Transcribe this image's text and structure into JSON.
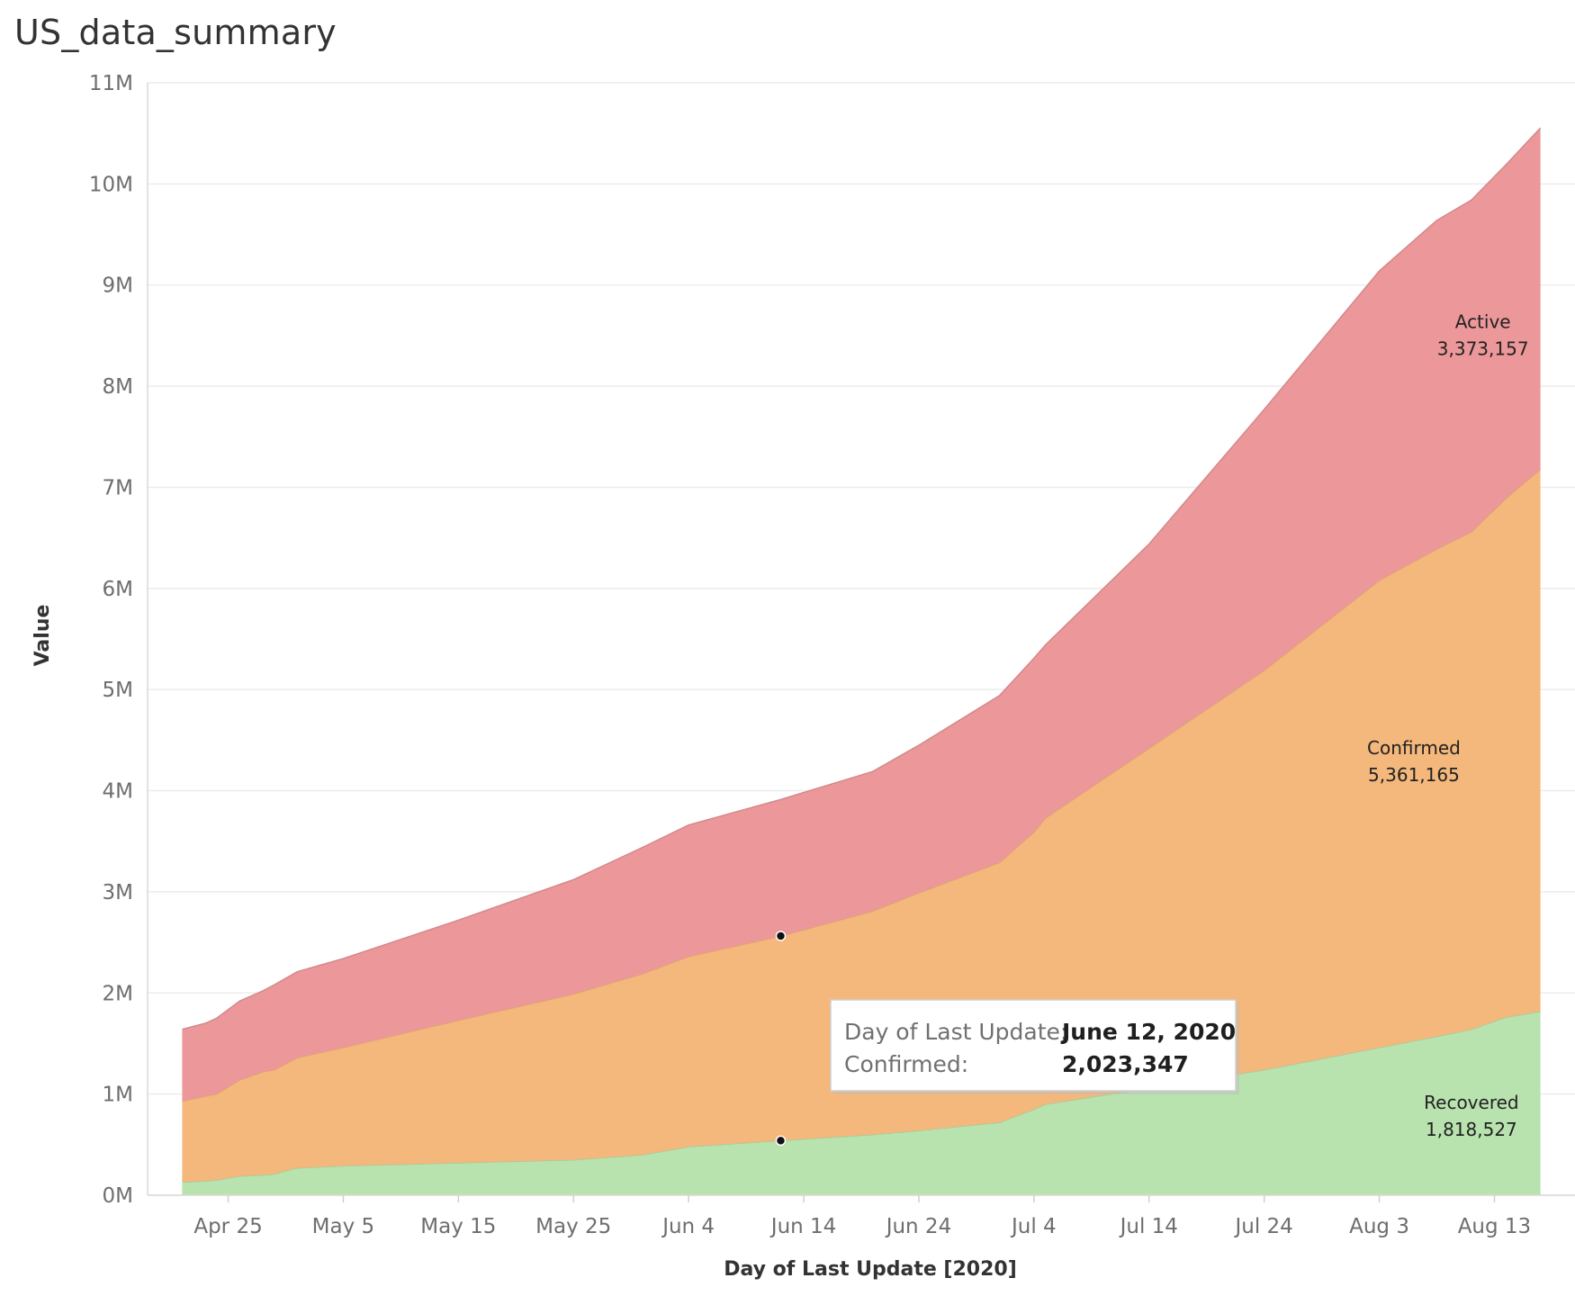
{
  "title": "US_data_summary",
  "chart_data": {
    "type": "area",
    "stacked": true,
    "title": "US_data_summary",
    "xlabel": "Day of Last Update [2020]",
    "ylabel": "Value",
    "y_ticks": [
      "0M",
      "1M",
      "2M",
      "3M",
      "4M",
      "5M",
      "6M",
      "7M",
      "8M",
      "9M",
      "10M",
      "11M"
    ],
    "ylim": [
      0,
      11000000
    ],
    "x_ticks": [
      {
        "date": "2020-04-25",
        "label": "Apr 25"
      },
      {
        "date": "2020-05-05",
        "label": "May 5"
      },
      {
        "date": "2020-05-15",
        "label": "May 15"
      },
      {
        "date": "2020-05-25",
        "label": "May 25"
      },
      {
        "date": "2020-06-04",
        "label": "Jun 4"
      },
      {
        "date": "2020-06-14",
        "label": "Jun 14"
      },
      {
        "date": "2020-06-24",
        "label": "Jun 24"
      },
      {
        "date": "2020-07-04",
        "label": "Jul 4"
      },
      {
        "date": "2020-07-14",
        "label": "Jul 14"
      },
      {
        "date": "2020-07-24",
        "label": "Jul 24"
      },
      {
        "date": "2020-08-03",
        "label": "Aug 3"
      },
      {
        "date": "2020-08-13",
        "label": "Aug 13"
      }
    ],
    "xlim": [
      "2020-04-18",
      "2020-08-20"
    ],
    "grid": true,
    "series": [
      {
        "name": "Recovered",
        "color": "#b8e2ae",
        "end_label": "Recovered",
        "end_value_label": "1,818,527",
        "points": [
          [
            "2020-04-21",
            130000
          ],
          [
            "2020-04-23",
            140000
          ],
          [
            "2020-04-24",
            150000
          ],
          [
            "2020-04-26",
            190000
          ],
          [
            "2020-04-28",
            200000
          ],
          [
            "2020-04-29",
            210000
          ],
          [
            "2020-05-01",
            270000
          ],
          [
            "2020-05-05",
            290000
          ],
          [
            "2020-05-15",
            320000
          ],
          [
            "2020-05-25",
            350000
          ],
          [
            "2020-05-31",
            400000
          ],
          [
            "2020-06-04",
            480000
          ],
          [
            "2020-06-12",
            540000
          ],
          [
            "2020-06-20",
            600000
          ],
          [
            "2020-06-24",
            640000
          ],
          [
            "2020-07-01",
            720000
          ],
          [
            "2020-07-04",
            850000
          ],
          [
            "2020-07-05",
            900000
          ],
          [
            "2020-07-14",
            1060000
          ],
          [
            "2020-07-24",
            1240000
          ],
          [
            "2020-08-03",
            1460000
          ],
          [
            "2020-08-08",
            1570000
          ],
          [
            "2020-08-11",
            1640000
          ],
          [
            "2020-08-14",
            1760000
          ],
          [
            "2020-08-17",
            1818527
          ]
        ]
      },
      {
        "name": "Confirmed",
        "color": "#f4b77c",
        "end_label": "Confirmed",
        "end_value_label": "5,361,165",
        "points": [
          [
            "2020-04-21",
            800000
          ],
          [
            "2020-04-23",
            840000
          ],
          [
            "2020-04-24",
            850000
          ],
          [
            "2020-04-26",
            950000
          ],
          [
            "2020-04-28",
            1020000
          ],
          [
            "2020-04-29",
            1030000
          ],
          [
            "2020-05-01",
            1090000
          ],
          [
            "2020-05-05",
            1170000
          ],
          [
            "2020-05-15",
            1410000
          ],
          [
            "2020-05-25",
            1640000
          ],
          [
            "2020-05-31",
            1790000
          ],
          [
            "2020-06-04",
            1880000
          ],
          [
            "2020-06-12",
            2023347
          ],
          [
            "2020-06-20",
            2210000
          ],
          [
            "2020-06-24",
            2350000
          ],
          [
            "2020-07-01",
            2570000
          ],
          [
            "2020-07-04",
            2740000
          ],
          [
            "2020-07-05",
            2830000
          ],
          [
            "2020-07-14",
            3360000
          ],
          [
            "2020-07-24",
            3950000
          ],
          [
            "2020-08-03",
            4620000
          ],
          [
            "2020-08-08",
            4820000
          ],
          [
            "2020-08-11",
            4920000
          ],
          [
            "2020-08-14",
            5130000
          ],
          [
            "2020-08-17",
            5361165
          ]
        ]
      },
      {
        "name": "Active",
        "color": "#ec9799",
        "end_label": "Active",
        "end_value_label": "3,373,157",
        "points": [
          [
            "2020-04-21",
            710000
          ],
          [
            "2020-04-23",
            720000
          ],
          [
            "2020-04-24",
            750000
          ],
          [
            "2020-04-26",
            780000
          ],
          [
            "2020-04-28",
            800000
          ],
          [
            "2020-04-29",
            840000
          ],
          [
            "2020-05-01",
            850000
          ],
          [
            "2020-05-05",
            880000
          ],
          [
            "2020-05-15",
            990000
          ],
          [
            "2020-05-25",
            1130000
          ],
          [
            "2020-05-31",
            1250000
          ],
          [
            "2020-06-04",
            1300000
          ],
          [
            "2020-06-12",
            1350000
          ],
          [
            "2020-06-20",
            1380000
          ],
          [
            "2020-06-24",
            1460000
          ],
          [
            "2020-07-01",
            1650000
          ],
          [
            "2020-07-04",
            1720000
          ],
          [
            "2020-07-05",
            1710000
          ],
          [
            "2020-07-14",
            2020000
          ],
          [
            "2020-07-24",
            2580000
          ],
          [
            "2020-08-03",
            3060000
          ],
          [
            "2020-08-08",
            3250000
          ],
          [
            "2020-08-11",
            3280000
          ],
          [
            "2020-08-14",
            3300000
          ],
          [
            "2020-08-17",
            3373157
          ]
        ]
      }
    ],
    "highlight_date": "2020-06-12",
    "tooltip": {
      "rows": [
        {
          "key": "Day of Last Update:",
          "value": "June 12, 2020"
        },
        {
          "key": "Confirmed:",
          "value": "2,023,347"
        }
      ]
    }
  }
}
